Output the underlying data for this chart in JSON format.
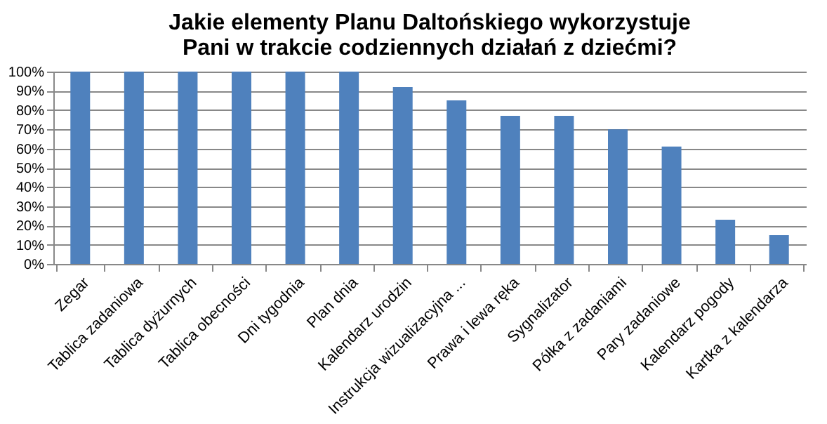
{
  "chart_data": {
    "type": "bar",
    "title": "Jakie elementy Planu Daltońskiego wykorzystuje Pani w trakcie codziennych działań z dziećmi?",
    "categories": [
      "Zegar",
      "Tablica zadaniowa",
      "Tablica dyżurnych",
      "Tablica obecności",
      "Dni tygodnia",
      "Plan dnia",
      "Kalendarz urodzin",
      "Instrukcja wizualizacyjna ...",
      "Prawa i lewa ręka",
      "Sygnalizator",
      "Półka z zadaniami",
      "Pary zadaniowe",
      "Kalendarz pogody",
      "Kartka z kalendarza"
    ],
    "values": [
      100,
      100,
      100,
      100,
      100,
      100,
      92,
      85,
      77,
      77,
      70,
      61,
      23,
      15
    ],
    "color": "#4f81bd",
    "ylim": [
      0,
      100
    ],
    "yticks": [
      {
        "value": 0,
        "label": "0%"
      },
      {
        "value": 10,
        "label": "10%"
      },
      {
        "value": 20,
        "label": "20%"
      },
      {
        "value": 30,
        "label": "30%"
      },
      {
        "value": 40,
        "label": "40%"
      },
      {
        "value": 50,
        "label": "50%"
      },
      {
        "value": 60,
        "label": "60%"
      },
      {
        "value": 70,
        "label": "70%"
      },
      {
        "value": 80,
        "label": "80%"
      },
      {
        "value": 90,
        "label": "90%"
      },
      {
        "value": 100,
        "label": "100%"
      }
    ],
    "grid": "y"
  }
}
